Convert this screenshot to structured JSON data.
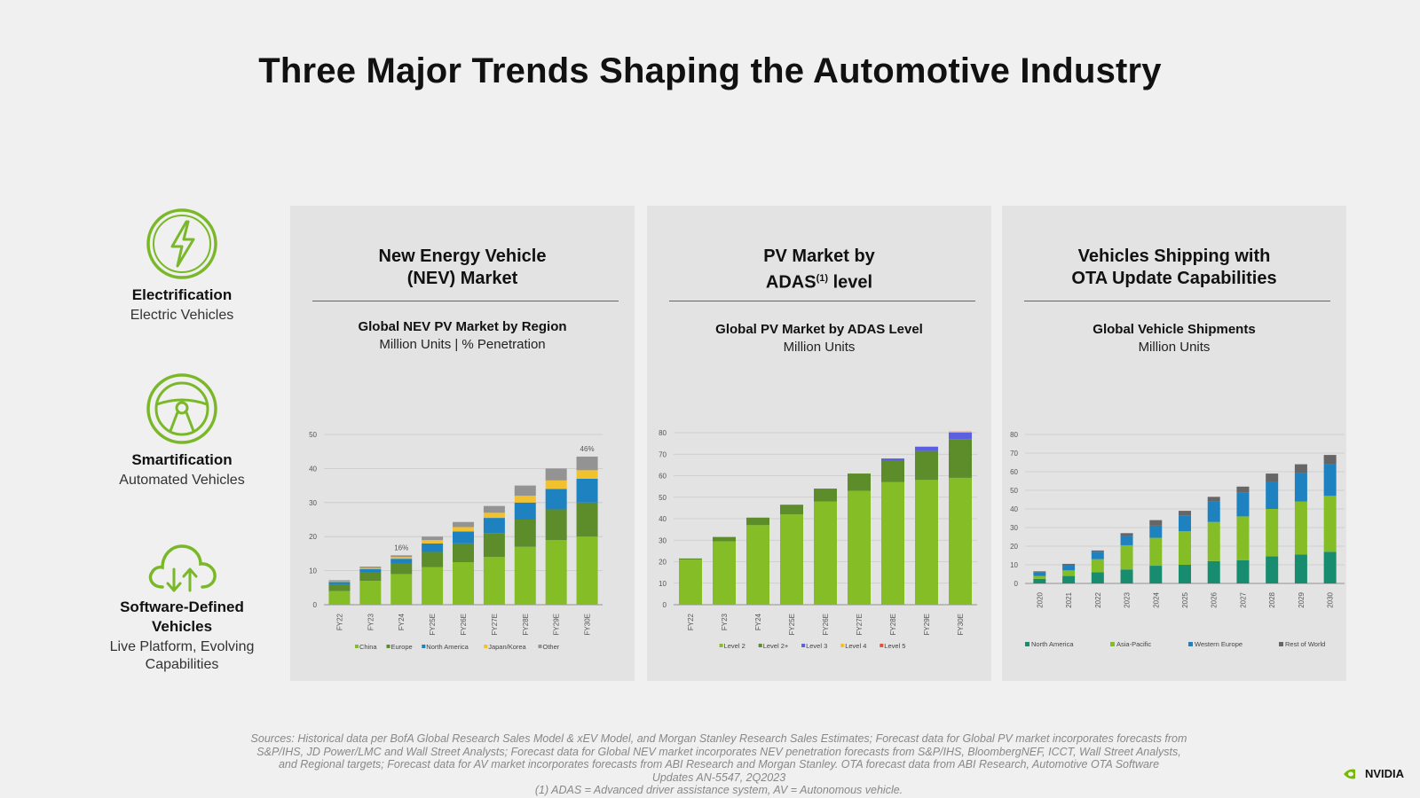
{
  "title": "Three Major Trends Shaping the Automotive Industry",
  "trends": [
    {
      "icon": "lightning-bolt-icon",
      "name": "Electrification",
      "sub": "Electric Vehicles"
    },
    {
      "icon": "steering-wheel-icon",
      "name": "Smartification",
      "sub": "Automated Vehicles"
    },
    {
      "icon": "cloud-upload-download-icon",
      "name": "Software-Defined Vehicles",
      "sub": "Live Platform, Evolving Capabilities"
    }
  ],
  "panels": [
    {
      "heading_line1": "New Energy Vehicle",
      "heading_line2": "(NEV) Market",
      "chart_title": "Global NEV PV Market by Region",
      "chart_unit": "Million Units | % Penetration"
    },
    {
      "heading_line1": "PV Market by",
      "heading_line2_main": "ADAS",
      "heading_line2_sup": "(1)",
      "heading_line2_tail": " level",
      "chart_title": "Global PV Market by ADAS Level",
      "chart_unit": "Million Units"
    },
    {
      "heading_line1": "Vehicles Shipping with",
      "heading_line2": "OTA Update Capabilities",
      "chart_title": "Global Vehicle Shipments",
      "chart_unit": "Million Units"
    }
  ],
  "footer": {
    "line1": "Sources: Historical data per BofA Global Research Sales Model & xEV Model, and Morgan Stanley Research Sales Estimates; Forecast data for Global PV market incorporates forecasts from",
    "line2": "S&P/IHS, JD Power/LMC and Wall Street Analysts; Forecast data for Global NEV market incorporates NEV penetration forecasts from S&P/IHS, BloombergNEF, ICCT, Wall Street Analysts,",
    "line3": "and Regional targets; Forecast data for AV market incorporates forecasts from ABI Research and Morgan Stanley. OTA forecast data from ABI Research, Automotive OTA Software",
    "line4": "Updates AN-5547, 2Q2023",
    "line5": "(1)  ADAS = Advanced driver assistance system, AV = Autonomous vehicle."
  },
  "logo_text": "NVIDIA",
  "colors": {
    "accent_green": "#76b900",
    "icon_green": "#7ab829"
  },
  "chart_data": [
    {
      "type": "bar",
      "stacked": true,
      "categories": [
        "FY22",
        "FY23",
        "FY24",
        "FY25E",
        "FY26E",
        "FY27E",
        "FY28E",
        "FY29E",
        "FY30E"
      ],
      "ylim": [
        0,
        50
      ],
      "yticks": [
        0,
        10,
        20,
        30,
        40,
        50
      ],
      "grid": true,
      "legend_position": "bottom",
      "annotations": [
        {
          "category": "FY24",
          "text": "16%"
        },
        {
          "category": "FY30E",
          "text": "46%"
        }
      ],
      "series": [
        {
          "name": "China",
          "color": "#84bd25",
          "values": [
            4,
            7,
            9,
            11,
            12.5,
            14,
            17,
            19,
            20
          ]
        },
        {
          "name": "Europe",
          "color": "#5d8c2a",
          "values": [
            2,
            2.5,
            3,
            4.5,
            5.5,
            7,
            8,
            9,
            10
          ]
        },
        {
          "name": "North America",
          "color": "#1f82c0",
          "values": [
            0.7,
            1,
            1.5,
            2.5,
            3.5,
            4.5,
            5,
            6,
            7
          ]
        },
        {
          "name": "Japan/Korea",
          "color": "#f2c12e",
          "values": [
            0.2,
            0.3,
            0.5,
            1,
            1.3,
            1.5,
            2,
            2.5,
            2.5
          ]
        },
        {
          "name": "Other",
          "color": "#939393",
          "values": [
            0.3,
            0.4,
            0.5,
            1,
            1.5,
            2,
            3,
            3.5,
            4
          ]
        }
      ]
    },
    {
      "type": "bar",
      "stacked": true,
      "categories": [
        "FY22",
        "FY23",
        "FY24",
        "FY25E",
        "FY26E",
        "FY27E",
        "FY28E",
        "FY29E",
        "FY30E"
      ],
      "ylim": [
        0,
        80
      ],
      "yticks": [
        0,
        10,
        20,
        30,
        40,
        50,
        60,
        70,
        80
      ],
      "grid": true,
      "legend_position": "bottom",
      "series": [
        {
          "name": "Level 2",
          "color": "#84bd25",
          "values": [
            21,
            29.5,
            37,
            42,
            48,
            53,
            57,
            58,
            59
          ]
        },
        {
          "name": "Level 2+",
          "color": "#5d8c2a",
          "values": [
            0.5,
            2,
            3.5,
            4.5,
            6,
            8,
            10,
            13.5,
            18
          ]
        },
        {
          "name": "Level 3",
          "color": "#5b5fe0",
          "values": [
            0,
            0,
            0,
            0,
            0,
            0,
            1,
            2,
            3
          ]
        },
        {
          "name": "Level 4",
          "color": "#f2c12e",
          "values": [
            0,
            0,
            0,
            0,
            0,
            0,
            0,
            0,
            0.3
          ]
        },
        {
          "name": "Level 5",
          "color": "#e0523c",
          "values": [
            0,
            0,
            0,
            0,
            0,
            0,
            0,
            0,
            0.2
          ]
        }
      ]
    },
    {
      "type": "bar",
      "stacked": true,
      "categories": [
        "2020",
        "2021",
        "2022",
        "2023",
        "2024",
        "2025",
        "2026",
        "2027",
        "2028",
        "2029",
        "2030"
      ],
      "ylim": [
        0,
        80
      ],
      "yticks": [
        0,
        10,
        20,
        30,
        40,
        50,
        60,
        70,
        80
      ],
      "grid": true,
      "legend_position": "bottom",
      "series": [
        {
          "name": "North America",
          "color": "#178c6e",
          "values": [
            2.5,
            4,
            6,
            7.5,
            9.5,
            10,
            12,
            12.5,
            14.5,
            15.5,
            17
          ]
        },
        {
          "name": "Asia-Pacific",
          "color": "#84bd25",
          "values": [
            1.5,
            3,
            7,
            13,
            15,
            18,
            21,
            23.5,
            25.5,
            28.5,
            30
          ]
        },
        {
          "name": "Western Europe",
          "color": "#1f82c0",
          "values": [
            2,
            3,
            4,
            5,
            6.5,
            8.5,
            11,
            13,
            14.5,
            15.5,
            17
          ]
        },
        {
          "name": "Rest of World",
          "color": "#666666",
          "values": [
            0.5,
            0.5,
            0.7,
            1.5,
            3,
            2.5,
            2.5,
            3,
            4.5,
            4.5,
            5
          ]
        }
      ]
    }
  ]
}
